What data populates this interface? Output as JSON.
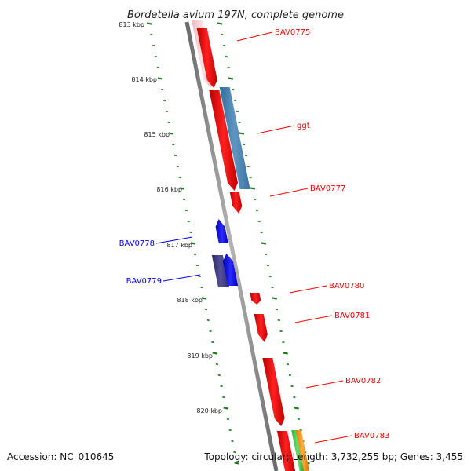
{
  "title": "Bordetella avium 197N, complete genome",
  "footer": {
    "accession": "Accession: NC_010645",
    "summary": "Topology: circular; Length: 3,732,255 bp; Genes: 3,455"
  },
  "colors": {
    "forward_strand": "#ff0000",
    "reverse_strand": "#0000ff",
    "backbone": "#888888",
    "tick_marks": "#1a7a1a"
  },
  "scale_ticks": [
    {
      "label": "813 kbp"
    },
    {
      "label": "814 kbp"
    },
    {
      "label": "815 kbp"
    },
    {
      "label": "816 kbp"
    },
    {
      "label": "817 kbp"
    },
    {
      "label": "818 kbp"
    },
    {
      "label": "819 kbp"
    },
    {
      "label": "820 kbp"
    }
  ],
  "gene_labels": [
    {
      "label": "BAV0775",
      "strand": "forward"
    },
    {
      "label": "ggt",
      "strand": "forward"
    },
    {
      "label": "BAV0777",
      "strand": "forward"
    },
    {
      "label": "BAV0778",
      "strand": "reverse"
    },
    {
      "label": "BAV0779",
      "strand": "reverse"
    },
    {
      "label": "BAV0780",
      "strand": "forward"
    },
    {
      "label": "BAV0781",
      "strand": "forward"
    },
    {
      "label": "BAV0782",
      "strand": "forward"
    },
    {
      "label": "BAV0783",
      "strand": "forward"
    }
  ]
}
